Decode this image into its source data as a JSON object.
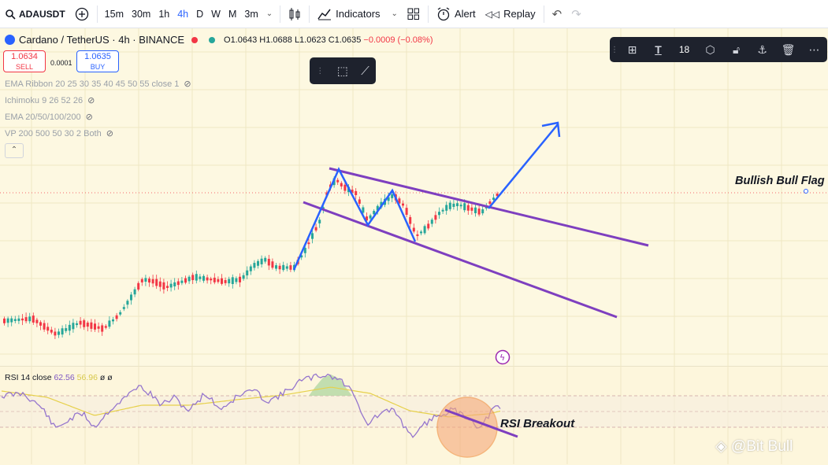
{
  "toolbar": {
    "symbol": "ADAUSDT",
    "intervals": [
      {
        "label": "15m",
        "active": false
      },
      {
        "label": "30m",
        "active": false
      },
      {
        "label": "1h",
        "active": false
      },
      {
        "label": "4h",
        "active": true
      },
      {
        "label": "D",
        "active": false
      },
      {
        "label": "W",
        "active": false
      },
      {
        "label": "M",
        "active": false
      },
      {
        "label": "3m",
        "active": false
      }
    ],
    "indicators_label": "Indicators",
    "alert_label": "Alert",
    "replay_label": "Replay",
    "icons": [
      "add-symbol-icon",
      "chevron-down-icon",
      "candles-icon",
      "indicators-icon",
      "layouts-icon",
      "alert-icon",
      "replay-icon",
      "undo-icon",
      "redo-icon"
    ]
  },
  "legend": {
    "title": "Cardano / TetherUS · 4h · BINANCE",
    "open": "O1.0643",
    "high": "H1.0688",
    "low": "L1.0623",
    "close": "C1.0635",
    "change": "−0.0009 (−0.08%)"
  },
  "trade": {
    "sell_price": "1.0634",
    "sell_label": "SELL",
    "spread": "0.0001",
    "buy_price": "1.0635",
    "buy_label": "BUY"
  },
  "indicators": [
    {
      "label": "EMA Ribbon 20 25 30 35 40 45 50 55 close 1"
    },
    {
      "label": "Ichimoku 9 26 52 26"
    },
    {
      "label": "EMA 20/50/100/200"
    },
    {
      "label": "VP 200 500 50 30 2 Both"
    }
  ],
  "drawing_toolbar": {
    "font_size": "18",
    "icons": [
      "drag-handle-icon",
      "template-icon",
      "text-color-icon",
      "settings-icon",
      "lock-icon",
      "anchor-icon",
      "trash-icon",
      "more-icon"
    ]
  },
  "annotations": {
    "bull_flag": "Bullish Bull Flag",
    "rsi_breakout": "RSI Breakout"
  },
  "rsi": {
    "label": "RSI 14 close",
    "value": "62.56",
    "ma_value": "56.96",
    "extra": "ø ø"
  },
  "watermark": "@Bit Bull",
  "colors": {
    "bull": "#26a69a",
    "bear": "#f23645",
    "flag_lines": "#7e3fbf",
    "arrow": "#2962ff",
    "rsi_line": "#9575cd",
    "rsi_ma": "#e6d04a"
  }
}
